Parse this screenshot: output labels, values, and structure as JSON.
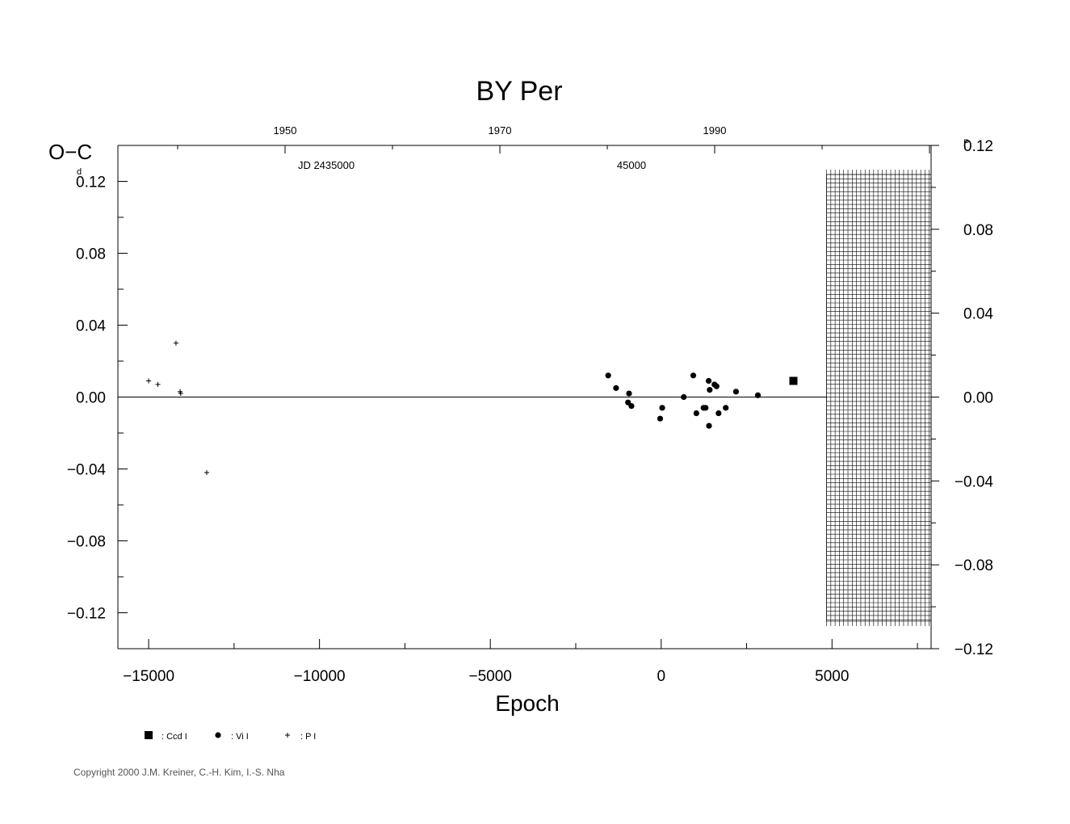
{
  "chart_data": {
    "type": "scatter",
    "title": "BY Per",
    "xlabel": "Epoch",
    "ylabel": "O−C",
    "y_unit_left": "d",
    "y_unit_right": "P",
    "xlim": [
      -15900,
      7900
    ],
    "ylim": [
      -0.14,
      0.14
    ],
    "right_ylim": [
      -0.12,
      0.12
    ],
    "x_ticks": [
      "−15000",
      "−10000",
      "−5000",
      "0",
      "5000"
    ],
    "y_ticks": [
      "0.12",
      "0.08",
      "0.04",
      "0.00",
      "−0.04",
      "−0.08",
      "−0.12"
    ],
    "right_y_ticks": [
      "0.12",
      "0.08",
      "0.04",
      "0.00",
      "−0.04",
      "−0.08",
      "−0.12"
    ],
    "top_year_ticks": [
      "1950",
      "1970",
      "1990"
    ],
    "top_jd_labels": [
      "JD  2435000",
      "45000"
    ],
    "hatched_region_x": [
      4840,
      7900
    ],
    "series": [
      {
        "name": ": Ccd  I",
        "marker": "square",
        "points": [
          [
            3870,
            0.009
          ]
        ]
      },
      {
        "name": ": Vi  I",
        "marker": "circle",
        "points": [
          [
            -1550,
            0.012
          ],
          [
            -1320,
            0.005
          ],
          [
            -970,
            -0.003
          ],
          [
            -940,
            0.002
          ],
          [
            -870,
            -0.005
          ],
          [
            -30,
            -0.012
          ],
          [
            30,
            -0.006
          ],
          [
            660,
            0.0
          ],
          [
            940,
            0.012
          ],
          [
            1030,
            -0.009
          ],
          [
            1240,
            -0.006
          ],
          [
            1300,
            -0.006
          ],
          [
            1390,
            0.009
          ],
          [
            1420,
            0.004
          ],
          [
            1400,
            -0.016
          ],
          [
            1560,
            0.007
          ],
          [
            1620,
            0.006
          ],
          [
            1680,
            -0.009
          ],
          [
            1890,
            -0.006
          ],
          [
            2190,
            0.003
          ],
          [
            2830,
            0.001
          ]
        ]
      },
      {
        "name": ": P  I",
        "marker": "plus",
        "points": [
          [
            -15000,
            0.009
          ],
          [
            -14730,
            0.007
          ],
          [
            -14200,
            0.03
          ],
          [
            -14080,
            0.003
          ],
          [
            -14060,
            0.002
          ],
          [
            -13300,
            -0.042
          ]
        ]
      }
    ]
  },
  "copyright": "Copyright 2000 J.M. Kreiner, C.-H. Kim, I.-S. Nha"
}
